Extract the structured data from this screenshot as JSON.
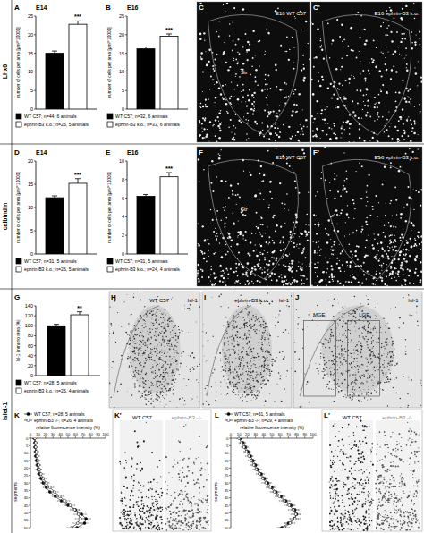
{
  "row_labels": [
    "Lhx6",
    "calbindin",
    "Islet-1"
  ],
  "chart_data": [
    {
      "type": "bar",
      "panel": "A",
      "title": "E14",
      "ylabel": "number of cells per area [μm²*10000]",
      "categories": [
        null
      ],
      "series": [
        {
          "name": "WT C57; n=44, 6 animals",
          "color": "#000000",
          "values": [
            15
          ],
          "errors": [
            0.6
          ]
        },
        {
          "name": "ephrin-B3 k.o.; n=26, 5 animals",
          "color": "#ffffff",
          "values": [
            22.8
          ],
          "errors": [
            0.9
          ]
        }
      ],
      "annotations": [
        "***"
      ],
      "ylim": [
        0,
        25
      ],
      "yticks": [
        0,
        5,
        10,
        15,
        20,
        25
      ]
    },
    {
      "type": "bar",
      "panel": "B",
      "title": "E16",
      "ylabel": "number of cells per area [μm²*10000]",
      "categories": [
        null
      ],
      "series": [
        {
          "name": "WT C57; n=32, 6 animals",
          "color": "#000000",
          "values": [
            16.2
          ],
          "errors": [
            0.5
          ]
        },
        {
          "name": "ephrin-B3 k.o.; n=33, 6 animals",
          "color": "#ffffff",
          "values": [
            19.6
          ],
          "errors": [
            0.6
          ]
        }
      ],
      "annotations": [
        "***"
      ],
      "ylim": [
        0,
        25
      ],
      "yticks": [
        0,
        5,
        10,
        15,
        20,
        25
      ]
    },
    {
      "type": "bar",
      "panel": "D",
      "title": "E14",
      "ylabel": "number of cells per area [μm²*10000]",
      "categories": [
        null
      ],
      "series": [
        {
          "name": "WT C57; n=31, 5 animals",
          "color": "#000000",
          "values": [
            12.1
          ],
          "errors": [
            0.4
          ]
        },
        {
          "name": "ephrin-B3 k.o.; n=26, 5 animals",
          "color": "#ffffff",
          "values": [
            15.2
          ],
          "errors": [
            1.0
          ]
        }
      ],
      "annotations": [
        "***"
      ],
      "ylim": [
        0,
        20
      ],
      "yticks": [
        0,
        5,
        10,
        15,
        20
      ]
    },
    {
      "type": "bar",
      "panel": "E",
      "title": "E16",
      "ylabel": "number of cells per area [μm²*10000]",
      "categories": [
        null
      ],
      "series": [
        {
          "name": "WT C57; n=31, 5 animals",
          "color": "#000000",
          "values": [
            6.2
          ],
          "errors": [
            0.2
          ]
        },
        {
          "name": "ephrin-B3 k.o.; n=24, 4 animals",
          "color": "#ffffff",
          "values": [
            8.3
          ],
          "errors": [
            0.45
          ]
        }
      ],
      "annotations": [
        "***"
      ],
      "ylim": [
        0,
        10
      ],
      "yticks": [
        0,
        2,
        4,
        6,
        8,
        10
      ]
    },
    {
      "type": "bar",
      "panel": "G",
      "ylabel": "Isl-1 immuno area (%)",
      "categories": [
        null
      ],
      "series": [
        {
          "name": "WT C57; n=28, 5 animals",
          "color": "#000000",
          "values": [
            100
          ],
          "errors": [
            3
          ]
        },
        {
          "name": "ephrin-B3 k.o.; n=26, 4 animals",
          "color": "#ffffff",
          "values": [
            122
          ],
          "errors": [
            6
          ]
        }
      ],
      "annotations": [
        "**"
      ],
      "ylim": [
        0,
        140
      ],
      "yticks": [
        0,
        20,
        40,
        60,
        80,
        100,
        120,
        140
      ]
    },
    {
      "type": "line",
      "panel": "K",
      "xlabel": "segments",
      "ylabel": "relative fluorescence intensity (%)",
      "x": [
        0,
        3,
        6,
        9,
        12,
        15,
        18,
        21,
        24,
        27,
        30,
        33,
        36,
        39,
        42,
        45,
        48,
        51,
        54,
        57,
        60
      ],
      "series": [
        {
          "name": "WT C57; n=28, 5 animals",
          "color": "#000000",
          "marker": "circle",
          "values": [
            5,
            6,
            6,
            7,
            7,
            8,
            9,
            10,
            12,
            14,
            17,
            21,
            26,
            33,
            41,
            50,
            60,
            68,
            74,
            72,
            62
          ],
          "errors": [
            2,
            2,
            2,
            2,
            2,
            2,
            2,
            3,
            3,
            3,
            3,
            4,
            4,
            4,
            5,
            5,
            5,
            6,
            6,
            6,
            6
          ]
        },
        {
          "name": "ephrin-B3 -/-; n=26, 4 animals",
          "color": "#ffffff",
          "marker": "circle",
          "values": [
            6,
            7,
            7,
            8,
            9,
            10,
            11,
            12,
            14,
            17,
            21,
            26,
            32,
            39,
            46,
            53,
            59,
            64,
            66,
            63,
            55
          ],
          "errors": [
            2,
            2,
            2,
            3,
            3,
            3,
            3,
            3,
            4,
            4,
            4,
            5,
            5,
            5,
            6,
            6,
            6,
            6,
            6,
            6,
            6
          ]
        }
      ],
      "xlim": [
        0,
        60
      ],
      "xticks": [
        0,
        5,
        10,
        15,
        20,
        25,
        30,
        35,
        40,
        45,
        50,
        55,
        60
      ],
      "ylim": [
        0,
        100
      ],
      "yticks": [
        0,
        10,
        20,
        30,
        40,
        50,
        60,
        70,
        80,
        90,
        100
      ]
    },
    {
      "type": "line",
      "panel": "L",
      "xlabel": "segments",
      "ylabel": "relative fluorescence intensity (%)",
      "x": [
        0,
        3,
        6,
        9,
        12,
        15,
        18,
        21,
        24,
        27,
        30,
        33,
        36,
        39,
        42,
        45,
        48,
        51,
        54,
        57,
        60
      ],
      "series": [
        {
          "name": "WT C57; n=31, 5 animals",
          "color": "#000000",
          "marker": "circle",
          "values": [
            12,
            15,
            18,
            21,
            24,
            27,
            30,
            33,
            37,
            41,
            45,
            50,
            55,
            61,
            67,
            73,
            78,
            80,
            77,
            70,
            62
          ],
          "errors": [
            3,
            3,
            3,
            3,
            3,
            3,
            4,
            4,
            4,
            4,
            4,
            5,
            5,
            5,
            5,
            5,
            5,
            5,
            5,
            5,
            5
          ]
        },
        {
          "name": "ephrin-B3 -/-; n=29, 4 animals",
          "color": "#ffffff",
          "marker": "circle",
          "values": [
            10,
            13,
            16,
            19,
            22,
            25,
            28,
            31,
            35,
            39,
            43,
            48,
            53,
            59,
            65,
            71,
            76,
            79,
            78,
            72,
            65
          ],
          "errors": [
            3,
            3,
            3,
            3,
            4,
            4,
            4,
            4,
            4,
            5,
            5,
            5,
            5,
            5,
            6,
            6,
            6,
            6,
            6,
            6,
            6
          ]
        }
      ],
      "xlim": [
        0,
        60
      ],
      "xticks": [
        0,
        5,
        10,
        15,
        20,
        25,
        30,
        35,
        40,
        45,
        50,
        55,
        60
      ],
      "ylim": [
        0,
        100
      ],
      "yticks": [
        0,
        10,
        20,
        30,
        40,
        50,
        60,
        70,
        80,
        90,
        100
      ]
    }
  ],
  "images": [
    {
      "panel": "C",
      "texts": [
        "E16 WT C57",
        "Str"
      ]
    },
    {
      "panel": "C'",
      "texts": [
        "E16 ephrin-B3 k.o."
      ]
    },
    {
      "panel": "F",
      "texts": [
        "E16 WT C57",
        "Str"
      ]
    },
    {
      "panel": "F'",
      "texts": [
        "E16 ephrin-B3 k.o."
      ]
    },
    {
      "panel": "H",
      "texts": [
        "WT C57",
        "Isl-1"
      ]
    },
    {
      "panel": "I",
      "texts": [
        "ephrin-B3 k.o.",
        "Isl-1"
      ]
    },
    {
      "panel": "J",
      "texts": [
        "Isl-1",
        "MGE",
        "LGE"
      ]
    },
    {
      "panel": "K'",
      "texts": [
        "WT C57",
        "ephrin-B3 -/-"
      ]
    },
    {
      "panel": "L'",
      "texts": [
        "WT C57",
        "ephrin-B3 -/-"
      ]
    }
  ]
}
